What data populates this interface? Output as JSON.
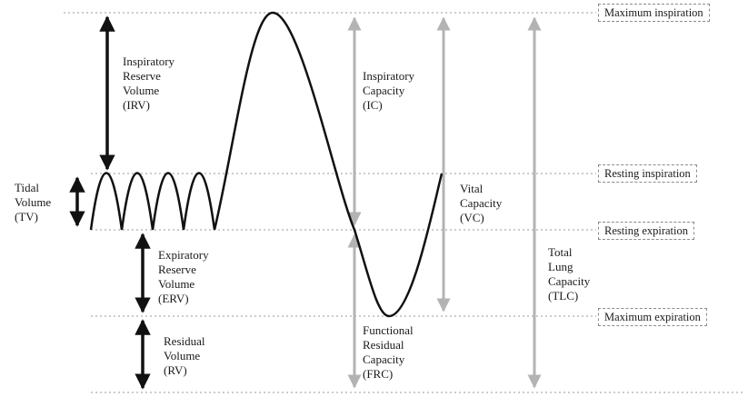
{
  "colors": {
    "curve": "#111111",
    "black_arrow": "#111111",
    "grey_arrow": "#b3b3b3",
    "dotted_line": "#9a9a9a"
  },
  "levels": {
    "max_inspiration": "Maximum  inspiration",
    "resting_inspiration": "Resting inspiration",
    "resting_expiration": "Resting expiration",
    "max_expiration": "Maximum  expiration"
  },
  "volumes": {
    "irv": [
      "Inspiratory",
      "Reserve",
      "Volume",
      "(IRV)"
    ],
    "tv": [
      "Tidal",
      "Volume",
      "(TV)"
    ],
    "erv": [
      "Expiratory",
      "Reserve",
      "Volume",
      "(ERV)"
    ],
    "rv": [
      "Residual",
      "Volume",
      "(RV)"
    ]
  },
  "capacities": {
    "ic": [
      "Inspiratory",
      "Capacity",
      "(IC)"
    ],
    "frc": [
      "Functional",
      "Residual",
      "Capacity",
      "(FRC)"
    ],
    "vc": [
      "Vital",
      "Capacity",
      "(VC)"
    ],
    "tlc": [
      "Total",
      "Lung",
      "Capacity",
      "(TLC)"
    ]
  }
}
